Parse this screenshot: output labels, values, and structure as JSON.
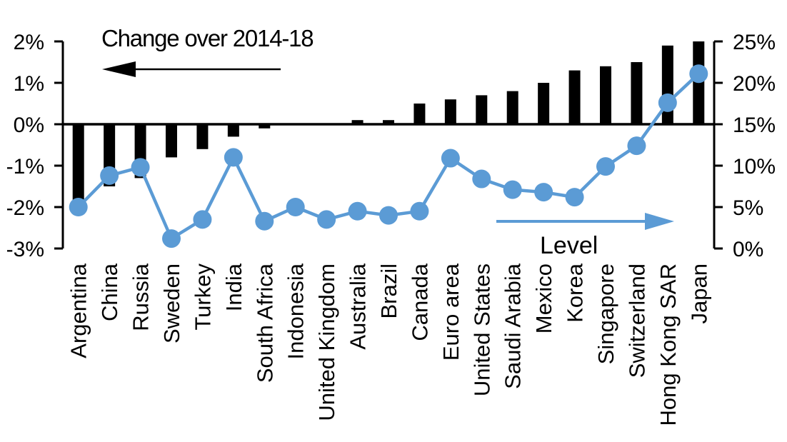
{
  "chart_data": {
    "type": "bar",
    "subtype": "combo-bar-line-dual-axis",
    "title": "Change over 2014-18",
    "categories": [
      "Argentina",
      "China",
      "Russia",
      "Sweden",
      "Turkey",
      "India",
      "South Africa",
      "Indonesia",
      "United Kingdom",
      "Australia",
      "Brazil",
      "Canada",
      "Euro area",
      "United States",
      "Saudi Arabia",
      "Mexico",
      "Korea",
      "Singapore",
      "Switzerland",
      "Hong Kong SAR",
      "Japan"
    ],
    "series": [
      {
        "name": "Change over 2014-18",
        "type": "bar",
        "axis": "left",
        "unit": "%",
        "color": "#000000",
        "values": [
          -1.9,
          -1.5,
          -1.3,
          -0.8,
          -0.6,
          -0.3,
          -0.1,
          0,
          0,
          0.1,
          0.1,
          0.5,
          0.6,
          0.7,
          0.8,
          1.0,
          1.3,
          1.4,
          1.5,
          1.9,
          2.0
        ]
      },
      {
        "name": "Level",
        "type": "line",
        "axis": "right",
        "unit": "%",
        "color": "#5B9BD5",
        "values": [
          5.0,
          8.8,
          9.8,
          1.2,
          3.5,
          11.0,
          3.3,
          5.0,
          3.5,
          4.5,
          4.0,
          4.5,
          10.9,
          8.4,
          7.1,
          6.8,
          6.2,
          9.9,
          12.4,
          17.6,
          21.1
        ]
      }
    ],
    "left_axis": {
      "min": -3,
      "max": 2,
      "tick_step": 1,
      "tick_labels": [
        "2%",
        "1%",
        "0%",
        "-1%",
        "-2%",
        "-3%"
      ]
    },
    "right_axis": {
      "min": 0,
      "max": 25,
      "tick_step": 5,
      "tick_labels": [
        "25%",
        "20%",
        "15%",
        "10%",
        "5%",
        "0%"
      ]
    },
    "annotations": [
      {
        "text": "Change over 2014-18",
        "arrow_direction": "left",
        "arrow_color": "#000000"
      },
      {
        "text": "Level",
        "arrow_direction": "right",
        "arrow_color": "#5B9BD5"
      }
    ],
    "grid": "off",
    "legend": "none",
    "axis_color": "#000000",
    "background_color": "#ffffff"
  }
}
